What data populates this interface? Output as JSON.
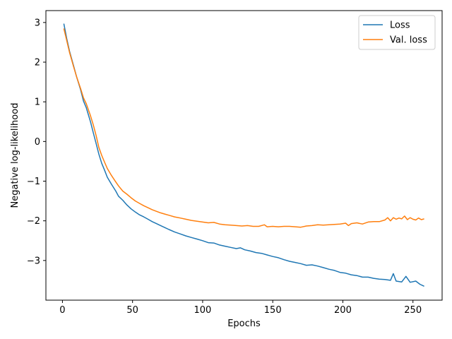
{
  "chart_data": {
    "type": "line",
    "title": "",
    "xlabel": "Epochs",
    "ylabel": "Negative log-likelihood",
    "xlim": [
      -11.8,
      270.8
    ],
    "ylim": [
      -4.0,
      3.3
    ],
    "xticks": [
      0,
      50,
      100,
      150,
      200,
      250
    ],
    "xtick_labels": [
      "0",
      "50",
      "100",
      "150",
      "200",
      "250"
    ],
    "yticks": [
      -3,
      -2,
      -1,
      0,
      1,
      2,
      3
    ],
    "ytick_labels": [
      "−3",
      "−2",
      "−1",
      "0",
      "1",
      "2",
      "3"
    ],
    "grid": false,
    "legend": "top-right",
    "series": [
      {
        "name": "Loss",
        "color": "#1f77b4",
        "points": [
          [
            1,
            2.97
          ],
          [
            3,
            2.6
          ],
          [
            5,
            2.28
          ],
          [
            8,
            1.9
          ],
          [
            10,
            1.64
          ],
          [
            13,
            1.3
          ],
          [
            15,
            1.02
          ],
          [
            17,
            0.85
          ],
          [
            20,
            0.5
          ],
          [
            22,
            0.22
          ],
          [
            24,
            -0.05
          ],
          [
            26,
            -0.32
          ],
          [
            28,
            -0.55
          ],
          [
            30,
            -0.72
          ],
          [
            32,
            -0.9
          ],
          [
            35,
            -1.08
          ],
          [
            38,
            -1.25
          ],
          [
            40,
            -1.38
          ],
          [
            43,
            -1.48
          ],
          [
            46,
            -1.6
          ],
          [
            49,
            -1.7
          ],
          [
            52,
            -1.78
          ],
          [
            55,
            -1.85
          ],
          [
            58,
            -1.9
          ],
          [
            61,
            -1.96
          ],
          [
            64,
            -2.02
          ],
          [
            67,
            -2.07
          ],
          [
            70,
            -2.12
          ],
          [
            73,
            -2.17
          ],
          [
            76,
            -2.22
          ],
          [
            80,
            -2.28
          ],
          [
            84,
            -2.33
          ],
          [
            88,
            -2.38
          ],
          [
            92,
            -2.42
          ],
          [
            96,
            -2.46
          ],
          [
            100,
            -2.5
          ],
          [
            104,
            -2.55
          ],
          [
            108,
            -2.56
          ],
          [
            112,
            -2.61
          ],
          [
            116,
            -2.64
          ],
          [
            120,
            -2.67
          ],
          [
            124,
            -2.7
          ],
          [
            127,
            -2.68
          ],
          [
            130,
            -2.73
          ],
          [
            134,
            -2.76
          ],
          [
            138,
            -2.8
          ],
          [
            142,
            -2.82
          ],
          [
            146,
            -2.86
          ],
          [
            150,
            -2.9
          ],
          [
            154,
            -2.93
          ],
          [
            158,
            -2.98
          ],
          [
            162,
            -3.02
          ],
          [
            166,
            -3.05
          ],
          [
            170,
            -3.08
          ],
          [
            174,
            -3.12
          ],
          [
            178,
            -3.11
          ],
          [
            182,
            -3.14
          ],
          [
            186,
            -3.18
          ],
          [
            190,
            -3.22
          ],
          [
            194,
            -3.25
          ],
          [
            198,
            -3.3
          ],
          [
            202,
            -3.32
          ],
          [
            206,
            -3.36
          ],
          [
            210,
            -3.38
          ],
          [
            214,
            -3.42
          ],
          [
            218,
            -3.42
          ],
          [
            222,
            -3.45
          ],
          [
            226,
            -3.47
          ],
          [
            230,
            -3.48
          ],
          [
            234,
            -3.5
          ],
          [
            236,
            -3.33
          ],
          [
            238,
            -3.52
          ],
          [
            242,
            -3.54
          ],
          [
            245,
            -3.4
          ],
          [
            248,
            -3.55
          ],
          [
            252,
            -3.52
          ],
          [
            255,
            -3.6
          ],
          [
            258,
            -3.65
          ]
        ]
      },
      {
        "name": "Val. loss",
        "color": "#ff7f0e",
        "points": [
          [
            1,
            2.85
          ],
          [
            3,
            2.55
          ],
          [
            5,
            2.25
          ],
          [
            8,
            1.88
          ],
          [
            10,
            1.64
          ],
          [
            13,
            1.33
          ],
          [
            15,
            1.1
          ],
          [
            17,
            0.95
          ],
          [
            20,
            0.65
          ],
          [
            22,
            0.42
          ],
          [
            24,
            0.15
          ],
          [
            26,
            -0.15
          ],
          [
            28,
            -0.35
          ],
          [
            30,
            -0.52
          ],
          [
            32,
            -0.68
          ],
          [
            35,
            -0.86
          ],
          [
            38,
            -1.02
          ],
          [
            40,
            -1.12
          ],
          [
            43,
            -1.25
          ],
          [
            46,
            -1.33
          ],
          [
            49,
            -1.42
          ],
          [
            52,
            -1.5
          ],
          [
            55,
            -1.56
          ],
          [
            58,
            -1.62
          ],
          [
            61,
            -1.67
          ],
          [
            64,
            -1.72
          ],
          [
            67,
            -1.76
          ],
          [
            70,
            -1.8
          ],
          [
            73,
            -1.83
          ],
          [
            76,
            -1.86
          ],
          [
            80,
            -1.9
          ],
          [
            84,
            -1.93
          ],
          [
            88,
            -1.96
          ],
          [
            92,
            -1.99
          ],
          [
            96,
            -2.01
          ],
          [
            100,
            -2.03
          ],
          [
            104,
            -2.05
          ],
          [
            108,
            -2.04
          ],
          [
            112,
            -2.08
          ],
          [
            116,
            -2.1
          ],
          [
            120,
            -2.11
          ],
          [
            124,
            -2.12
          ],
          [
            128,
            -2.13
          ],
          [
            132,
            -2.12
          ],
          [
            136,
            -2.14
          ],
          [
            140,
            -2.14
          ],
          [
            144,
            -2.1
          ],
          [
            146,
            -2.15
          ],
          [
            150,
            -2.14
          ],
          [
            154,
            -2.15
          ],
          [
            158,
            -2.14
          ],
          [
            162,
            -2.14
          ],
          [
            166,
            -2.15
          ],
          [
            170,
            -2.16
          ],
          [
            174,
            -2.13
          ],
          [
            178,
            -2.12
          ],
          [
            182,
            -2.1
          ],
          [
            186,
            -2.11
          ],
          [
            190,
            -2.1
          ],
          [
            194,
            -2.09
          ],
          [
            198,
            -2.08
          ],
          [
            202,
            -2.06
          ],
          [
            204,
            -2.12
          ],
          [
            206,
            -2.07
          ],
          [
            210,
            -2.05
          ],
          [
            214,
            -2.08
          ],
          [
            218,
            -2.03
          ],
          [
            222,
            -2.02
          ],
          [
            226,
            -2.02
          ],
          [
            230,
            -1.98
          ],
          [
            232,
            -1.92
          ],
          [
            234,
            -2.0
          ],
          [
            236,
            -1.92
          ],
          [
            238,
            -1.96
          ],
          [
            240,
            -1.93
          ],
          [
            242,
            -1.95
          ],
          [
            244,
            -1.88
          ],
          [
            246,
            -1.97
          ],
          [
            248,
            -1.92
          ],
          [
            250,
            -1.96
          ],
          [
            252,
            -1.98
          ],
          [
            254,
            -1.93
          ],
          [
            256,
            -1.97
          ],
          [
            258,
            -1.95
          ]
        ]
      }
    ]
  }
}
